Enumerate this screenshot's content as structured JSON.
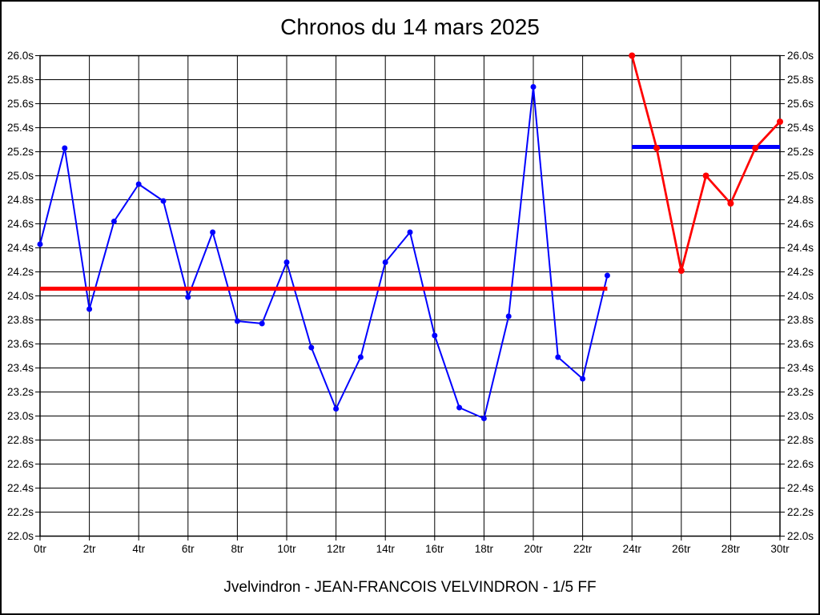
{
  "figure": {
    "title": "Chronos du 14 mars 2025",
    "caption": "Jvelvindron - JEAN-FRANCOIS VELVINDRON - 1/5 FF"
  },
  "chart_data": {
    "type": "line",
    "title": "Chronos du 14 mars 2025",
    "xlabel": "",
    "ylabel": "",
    "x_unit": "tr",
    "y_unit": "s",
    "xlim": [
      0,
      30
    ],
    "ylim": [
      22.0,
      26.0
    ],
    "grid": true,
    "legend": "none",
    "background_color": "#ffffff",
    "grid_color": "#000000",
    "x_ticks": {
      "values": [
        0,
        2,
        4,
        6,
        8,
        10,
        12,
        14,
        16,
        18,
        20,
        22,
        24,
        26,
        28,
        30
      ],
      "labels": [
        "0tr",
        "2tr",
        "4tr",
        "6tr",
        "8tr",
        "10tr",
        "12tr",
        "14tr",
        "16tr",
        "18tr",
        "20tr",
        "22tr",
        "24tr",
        "26tr",
        "28tr",
        "30tr"
      ]
    },
    "y_ticks": {
      "values": [
        26.0,
        25.8,
        25.6,
        25.4,
        25.2,
        25.0,
        24.8,
        24.6,
        24.4,
        24.2,
        24.0,
        23.8,
        23.6,
        23.4,
        23.2,
        23.0,
        22.8,
        22.6,
        22.4,
        22.2,
        22.0
      ],
      "labels": [
        "26.0s",
        "25.8s",
        "25.6s",
        "25.4s",
        "25.2s",
        "25.0s",
        "24.8s",
        "24.6s",
        "24.4s",
        "24.2s",
        "24.0s",
        "23.8s",
        "23.6s",
        "23.4s",
        "23.2s",
        "23.0s",
        "22.8s",
        "22.6s",
        "22.4s",
        "22.2s",
        "22.0s"
      ]
    },
    "series": [
      {
        "name": "serie-bleue-tours-0-23",
        "color": "#0000ff",
        "marker": "circle",
        "x": [
          0,
          1,
          2,
          3,
          4,
          5,
          6,
          7,
          8,
          9,
          10,
          11,
          12,
          13,
          14,
          15,
          16,
          17,
          18,
          19,
          20,
          21,
          22,
          23
        ],
        "y": [
          24.43,
          25.23,
          23.89,
          24.62,
          24.93,
          24.79,
          23.99,
          24.53,
          23.79,
          23.77,
          24.28,
          23.57,
          23.06,
          23.49,
          24.28,
          24.53,
          23.67,
          23.07,
          22.98,
          23.83,
          25.74,
          23.49,
          23.31,
          24.17
        ]
      },
      {
        "name": "serie-rouge-tours-24-30",
        "color": "#ff0000",
        "marker": "circle",
        "x": [
          24,
          25,
          26,
          27,
          28,
          29,
          30
        ],
        "y": [
          26.0,
          25.23,
          24.21,
          25.0,
          24.77,
          25.23,
          25.45
        ]
      }
    ],
    "reference_lines": [
      {
        "name": "ligne-horizontale-rouge",
        "color": "#ff0000",
        "y": 24.06,
        "x_start": 0,
        "x_end": 23
      },
      {
        "name": "ligne-horizontale-bleue",
        "color": "#0000ff",
        "y": 25.24,
        "x_start": 24,
        "x_end": 30
      }
    ]
  }
}
